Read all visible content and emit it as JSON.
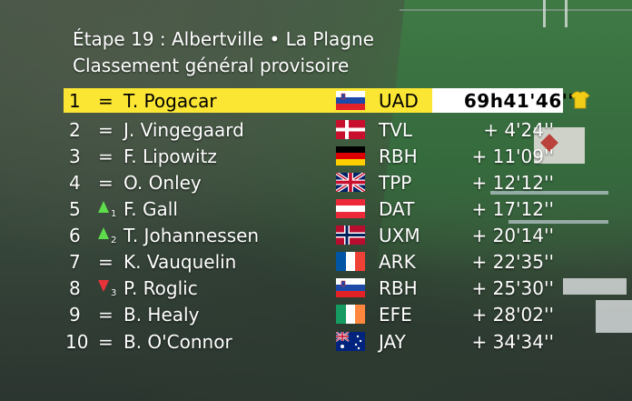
{
  "header": {
    "stage": "Étape 19 : Albertville • La Plagne",
    "subtitle": "Classement général provisoire"
  },
  "colors": {
    "leader_bar": "#fbe634",
    "up_arrow": "#5fdc4c",
    "down_arrow": "#e8333a"
  },
  "leader_icon": "yellow-jersey-icon",
  "rows": [
    {
      "rank": "1",
      "move": "=",
      "move_delta": "",
      "name": "T. Pogacar",
      "country": "slovenia",
      "team": "UAD",
      "time": "69h41'46''"
    },
    {
      "rank": "2",
      "move": "=",
      "move_delta": "",
      "name": "J. Vingegaard",
      "country": "denmark",
      "team": "TVL",
      "time": "+ 4'24''"
    },
    {
      "rank": "3",
      "move": "=",
      "move_delta": "",
      "name": "F. Lipowitz",
      "country": "germany",
      "team": "RBH",
      "time": "+ 11'09''"
    },
    {
      "rank": "4",
      "move": "=",
      "move_delta": "",
      "name": "O. Onley",
      "country": "uk",
      "team": "TPP",
      "time": "+ 12'12''"
    },
    {
      "rank": "5",
      "move": "up",
      "move_delta": "1",
      "name": "F. Gall",
      "country": "austria",
      "team": "DAT",
      "time": "+ 17'12''"
    },
    {
      "rank": "6",
      "move": "up",
      "move_delta": "2",
      "name": "T. Johannessen",
      "country": "norway",
      "team": "UXM",
      "time": "+ 20'14''"
    },
    {
      "rank": "7",
      "move": "=",
      "move_delta": "",
      "name": "K. Vauquelin",
      "country": "france",
      "team": "ARK",
      "time": "+ 22'35''"
    },
    {
      "rank": "8",
      "move": "down",
      "move_delta": "3",
      "name": "P. Roglic",
      "country": "slovenia",
      "team": "RBH",
      "time": "+ 25'30''"
    },
    {
      "rank": "9",
      "move": "=",
      "move_delta": "",
      "name": "B. Healy",
      "country": "ireland",
      "team": "EFE",
      "time": "+ 28'02''"
    },
    {
      "rank": "10",
      "move": "=",
      "move_delta": "",
      "name": "B. O'Connor",
      "country": "australia",
      "team": "JAY",
      "time": "+ 34'34''"
    }
  ]
}
